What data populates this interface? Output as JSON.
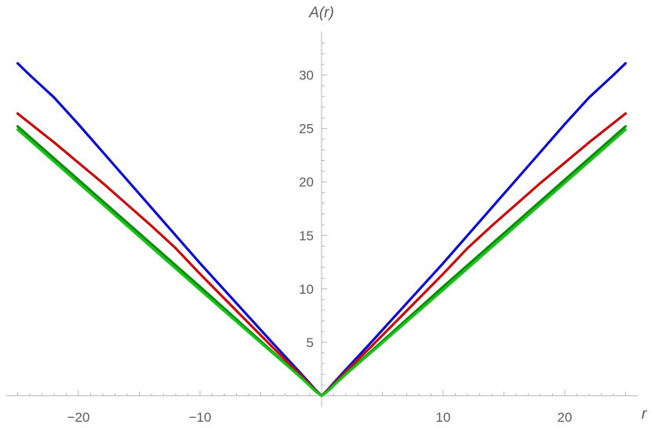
{
  "chart_data": {
    "type": "line",
    "title": "",
    "xlabel": "r",
    "ylabel": "A(r)",
    "xlim": [
      -26,
      26
    ],
    "ylim": [
      -0.3,
      33.5
    ],
    "x_ticks": [
      -20,
      -10,
      10,
      20
    ],
    "x_tick_labels": [
      "−20",
      "−10",
      "10",
      "20"
    ],
    "y_ticks": [
      5,
      10,
      15,
      20,
      25,
      30
    ],
    "y_tick_labels": [
      "5",
      "10",
      "15",
      "20",
      "25",
      "30"
    ],
    "grid": false,
    "series": [
      {
        "color": "#0a0ad2",
        "x": [
          -25,
          -24,
          -22,
          -20,
          -18,
          -16,
          -14,
          -12,
          -10,
          -8,
          -6,
          -4,
          -2,
          -1,
          -0.5,
          0,
          0.5,
          1,
          2,
          4,
          6,
          8,
          10,
          12,
          14,
          16,
          18,
          20,
          22,
          24,
          25
        ],
        "y": [
          31.1,
          30.0,
          27.9,
          25.4,
          22.8,
          20.2,
          17.6,
          15.0,
          12.4,
          9.9,
          7.4,
          4.9,
          2.45,
          1.2,
          0.55,
          0.0,
          0.55,
          1.2,
          2.45,
          4.9,
          7.4,
          9.9,
          12.4,
          15.0,
          17.6,
          20.2,
          22.8,
          25.4,
          27.9,
          30.0,
          31.1
        ]
      },
      {
        "color": "#c80a0a",
        "x": [
          -25,
          -22,
          -20,
          -18,
          -16,
          -14,
          -12,
          -10,
          -8,
          -6,
          -4,
          -2,
          -1,
          -0.5,
          0,
          0.5,
          1,
          2,
          4,
          6,
          8,
          10,
          12,
          14,
          16,
          18,
          20,
          22,
          25
        ],
        "y": [
          26.4,
          23.7,
          21.8,
          19.9,
          17.9,
          15.9,
          13.8,
          11.4,
          9.1,
          6.8,
          4.5,
          2.25,
          1.1,
          0.5,
          0.0,
          0.5,
          1.1,
          2.25,
          4.5,
          6.8,
          9.1,
          11.4,
          13.8,
          15.9,
          17.9,
          19.9,
          21.8,
          23.7,
          26.4
        ]
      },
      {
        "color": "#0a8c0a",
        "x": [
          -25,
          -20,
          -15,
          -10,
          -5,
          -2,
          -1,
          -0.5,
          0,
          0.5,
          1,
          2,
          5,
          10,
          15,
          20,
          25
        ],
        "y": [
          25.2,
          20.2,
          15.2,
          10.2,
          5.1,
          2.05,
          1.0,
          0.45,
          0.0,
          0.45,
          1.0,
          2.05,
          5.1,
          10.2,
          15.2,
          20.2,
          25.2
        ]
      },
      {
        "color": "#19c319",
        "x": [
          -25,
          -20,
          -15,
          -10,
          -5,
          -2,
          -1,
          -0.5,
          0,
          0.5,
          1,
          2,
          5,
          10,
          15,
          20,
          25
        ],
        "y": [
          24.9,
          19.9,
          14.9,
          9.9,
          4.95,
          2.0,
          0.95,
          0.4,
          0.0,
          0.4,
          0.95,
          2.0,
          4.95,
          9.9,
          14.9,
          19.9,
          24.9
        ]
      }
    ]
  }
}
